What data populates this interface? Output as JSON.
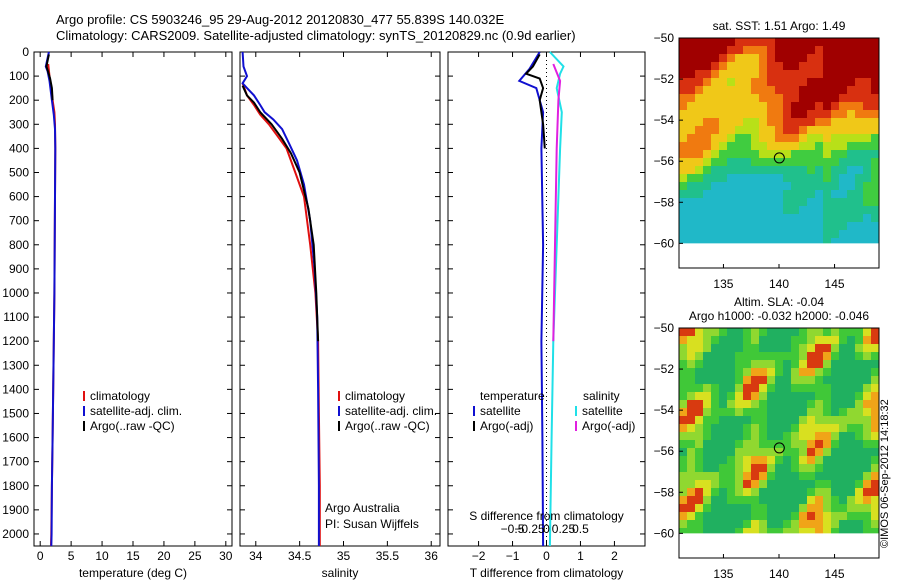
{
  "header": {
    "line1": "Argo profile: CS 5903246_95 29-Aug-2012 20120830_477 55.839S 140.032E",
    "line2": "Climatology: CARS2009. Satellite-adjusted climatology: synTS_20120829.nc (0.9d earlier)"
  },
  "footer_stamp": "©IMOS 06-Sep-2012 14:18:32",
  "colors": {
    "climatology": "#e01010",
    "satellite": "#1010d0",
    "argo": "#000000",
    "sal_satellite": "#20e0e8",
    "sal_argo": "#e020e0"
  },
  "chart_data": [
    {
      "type": "line",
      "id": "temperature",
      "xlabel": "temperature (deg C)",
      "xticks": [
        "0",
        "5",
        "10",
        "15",
        "20",
        "25",
        "30"
      ],
      "xlim": [
        -1,
        31
      ],
      "ylim": [
        2050,
        0
      ],
      "yticks": [
        "0",
        "100",
        "200",
        "300",
        "400",
        "500",
        "600",
        "700",
        "800",
        "900",
        "1000",
        "1100",
        "1200",
        "1300",
        "1400",
        "1500",
        "1600",
        "1700",
        "1800",
        "1900",
        "2000"
      ],
      "legend": [
        "climatology",
        "satellite-adj. clim.",
        "Argo(..raw -QC)"
      ],
      "series": [
        {
          "name": "climatology",
          "color_key": "climatology",
          "points": [
            [
              1.3,
              50
            ],
            [
              1.5,
              100
            ],
            [
              1.8,
              150
            ],
            [
              2.0,
              200
            ],
            [
              2.3,
              250
            ],
            [
              2.4,
              300
            ],
            [
              2.45,
              400
            ],
            [
              2.4,
              600
            ],
            [
              2.35,
              800
            ],
            [
              2.3,
              1000
            ],
            [
              2.2,
              1200
            ],
            [
              2.1,
              1400
            ],
            [
              2.0,
              1600
            ],
            [
              1.9,
              1800
            ],
            [
              1.8,
              2000
            ],
            [
              1.75,
              2050
            ]
          ]
        },
        {
          "name": "satellite-adj. clim.",
          "color_key": "satellite",
          "points": [
            [
              1.4,
              0
            ],
            [
              0.9,
              60
            ],
            [
              1.2,
              80
            ],
            [
              1.5,
              120
            ],
            [
              1.9,
              200
            ],
            [
              2.2,
              260
            ],
            [
              2.4,
              320
            ],
            [
              2.45,
              400
            ],
            [
              2.4,
              600
            ],
            [
              2.35,
              800
            ],
            [
              2.3,
              1000
            ],
            [
              2.2,
              1200
            ],
            [
              2.1,
              1400
            ],
            [
              2.0,
              1600
            ],
            [
              1.9,
              1800
            ],
            [
              1.85,
              2000
            ],
            [
              1.8,
              2050
            ]
          ]
        },
        {
          "name": "Argo(..raw -QC)",
          "color_key": "argo",
          "points": [
            [
              1.4,
              10
            ],
            [
              1.0,
              60
            ],
            [
              1.2,
              75
            ],
            [
              1.6,
              110
            ],
            [
              1.9,
              150
            ],
            [
              2.0,
              200
            ]
          ]
        }
      ]
    },
    {
      "type": "line",
      "id": "salinity",
      "xlabel": "salinity",
      "xticks": [
        "34",
        "34.5",
        "35",
        "35.5",
        "36"
      ],
      "xlim": [
        33.82,
        36.1
      ],
      "ylim": [
        2050,
        0
      ],
      "legend": [
        "climatology",
        "satellite-adj. clim.",
        "Argo(..raw -QC)"
      ],
      "annotation": [
        "Argo Australia",
        "PI: Susan Wijffels"
      ],
      "series": [
        {
          "name": "climatology",
          "color_key": "climatology",
          "points": [
            [
              33.85,
              130
            ],
            [
              33.9,
              180
            ],
            [
              33.98,
              220
            ],
            [
              34.05,
              260
            ],
            [
              34.15,
              300
            ],
            [
              34.25,
              350
            ],
            [
              34.35,
              400
            ],
            [
              34.45,
              500
            ],
            [
              34.55,
              600
            ],
            [
              34.62,
              800
            ],
            [
              34.68,
              1000
            ],
            [
              34.71,
              1200
            ],
            [
              34.72,
              1500
            ],
            [
              34.73,
              1800
            ],
            [
              34.73,
              2050
            ]
          ]
        },
        {
          "name": "satellite-adj. clim.",
          "color_key": "satellite",
          "points": [
            [
              33.85,
              0
            ],
            [
              33.86,
              60
            ],
            [
              33.9,
              100
            ],
            [
              33.85,
              130
            ],
            [
              33.9,
              150
            ],
            [
              33.98,
              180
            ],
            [
              34.05,
              220
            ],
            [
              34.1,
              250
            ],
            [
              34.2,
              280
            ],
            [
              34.3,
              320
            ],
            [
              34.38,
              380
            ],
            [
              34.47,
              450
            ],
            [
              34.55,
              550
            ],
            [
              34.62,
              700
            ],
            [
              34.67,
              900
            ],
            [
              34.7,
              1100
            ],
            [
              34.71,
              1400
            ],
            [
              34.72,
              1800
            ],
            [
              34.72,
              2050
            ]
          ]
        },
        {
          "name": "Argo(..raw -QC)",
          "color_key": "argo",
          "points": [
            [
              33.85,
              140
            ],
            [
              33.9,
              180
            ],
            [
              33.98,
              210
            ],
            [
              34.05,
              250
            ],
            [
              34.18,
              300
            ],
            [
              34.3,
              360
            ],
            [
              34.4,
              420
            ],
            [
              34.5,
              500
            ],
            [
              34.6,
              650
            ],
            [
              34.66,
              800
            ],
            [
              34.69,
              1000
            ],
            [
              34.71,
              1200
            ]
          ]
        }
      ]
    },
    {
      "type": "line",
      "id": "differences",
      "xlabel": "T difference from climatology",
      "top_label": "S difference from climatology",
      "xticks": [
        "−2",
        "−1",
        "0",
        "1",
        "2"
      ],
      "top_ticks": [
        "−0.5",
        "−0.25",
        "0",
        "0.25",
        "0.5"
      ],
      "xlim": [
        -2.9,
        2.9
      ],
      "ylim": [
        2050,
        0
      ],
      "legend": {
        "temperature_title": "temperature",
        "salinity_title": "salinity",
        "entries": [
          "satellite",
          "Argo(-adj)",
          "satellite",
          "Argo(-adj)"
        ]
      },
      "series": [
        {
          "name": "temperature satellite",
          "color_key": "satellite",
          "points": [
            [
              -0.2,
              0
            ],
            [
              -0.5,
              70
            ],
            [
              -0.8,
              120
            ],
            [
              -0.3,
              150
            ],
            [
              -0.1,
              250
            ],
            [
              -0.15,
              400
            ],
            [
              -0.1,
              800
            ],
            [
              -0.15,
              1200
            ],
            [
              -0.12,
              1600
            ],
            [
              -0.1,
              2050
            ]
          ]
        },
        {
          "name": "temperature Argo(-adj)",
          "color_key": "argo",
          "points": [
            [
              -0.2,
              10
            ],
            [
              -0.4,
              60
            ],
            [
              -0.6,
              90
            ],
            [
              -0.2,
              110
            ],
            [
              -0.1,
              150
            ],
            [
              -0.2,
              200
            ],
            [
              -0.1,
              300
            ],
            [
              -0.05,
              400
            ]
          ]
        },
        {
          "name": "salinity satellite",
          "color_key": "sal_satellite",
          "points": [
            [
              0.1,
              0
            ],
            [
              0.5,
              60
            ],
            [
              0.4,
              90
            ],
            [
              0.3,
              150
            ],
            [
              0.45,
              250
            ],
            [
              0.4,
              400
            ],
            [
              0.3,
              800
            ],
            [
              0.2,
              1200
            ],
            [
              0.15,
              1600
            ],
            [
              0.1,
              2050
            ]
          ]
        },
        {
          "name": "salinity Argo(-adj)",
          "color_key": "sal_argo",
          "points": [
            [
              0.2,
              50
            ],
            [
              0.4,
              120
            ],
            [
              0.35,
              200
            ],
            [
              0.3,
              400
            ],
            [
              0.25,
              800
            ],
            [
              0.2,
              1200
            ]
          ]
        }
      ]
    },
    {
      "type": "heatmap",
      "id": "sst_map",
      "title": "sat. SST: 1.51 Argo: 1.49",
      "yticks": [
        "-50",
        "-52",
        "-54",
        "-56",
        "-58",
        "-60"
      ],
      "xticks": [
        "135",
        "140",
        "145"
      ],
      "xlim": [
        131,
        149
      ],
      "ylim": [
        -61.2,
        -50
      ],
      "marker": [
        140.03,
        -55.84
      ]
    },
    {
      "type": "heatmap",
      "id": "sla_map",
      "title": "Altim. SLA: -0.04",
      "subtitle": "Argo h1000: -0.032 h2000: -0.046",
      "yticks": [
        "-50",
        "-52",
        "-54",
        "-56",
        "-58",
        "-60"
      ],
      "xticks": [
        "135",
        "140",
        "145"
      ],
      "xlim": [
        131,
        149
      ],
      "ylim": [
        -61.2,
        -50
      ],
      "marker": [
        140.03,
        -55.84
      ]
    }
  ]
}
